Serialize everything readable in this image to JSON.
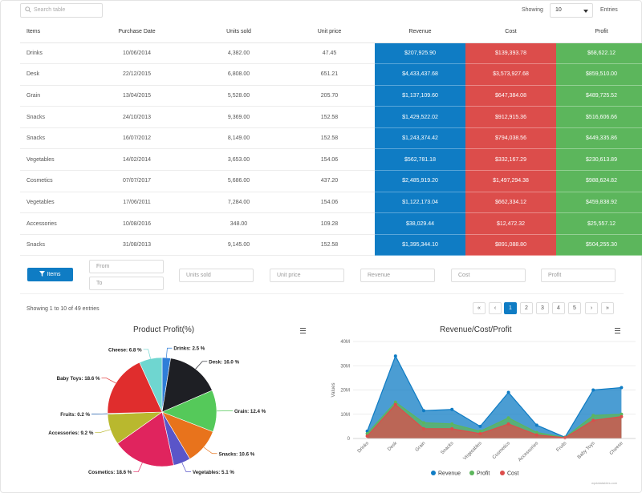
{
  "search": {
    "placeholder": "Search table"
  },
  "length": {
    "showing_label": "Showing",
    "value": "10",
    "entries_label": "Entries"
  },
  "table": {
    "columns": [
      "Items",
      "Purchase Date",
      "Units sold",
      "Unit price",
      "Revenue",
      "Cost",
      "Profit"
    ],
    "rows": [
      [
        "Drinks",
        "10/06/2014",
        "4,382.00",
        "47.45",
        "$207,925.90",
        "$139,393.78",
        "$68,622.12"
      ],
      [
        "Desk",
        "22/12/2015",
        "6,808.00",
        "651.21",
        "$4,433,437.68",
        "$3,573,927.68",
        "$859,510.00"
      ],
      [
        "Grain",
        "13/04/2015",
        "5,528.00",
        "205.70",
        "$1,137,109.60",
        "$647,384.08",
        "$489,725.52"
      ],
      [
        "Snacks",
        "24/10/2013",
        "9,369.00",
        "152.58",
        "$1,429,522.02",
        "$912,915.36",
        "$516,606.66"
      ],
      [
        "Snacks",
        "16/07/2012",
        "8,149.00",
        "152.58",
        "$1,243,374.42",
        "$794,038.56",
        "$449,335.86"
      ],
      [
        "Vegetables",
        "14/02/2014",
        "3,653.00",
        "154.06",
        "$562,781.18",
        "$332,167.29",
        "$230,613.89"
      ],
      [
        "Cosmetics",
        "07/07/2017",
        "5,686.00",
        "437.20",
        "$2,485,919.20",
        "$1,497,294.38",
        "$988,624.82"
      ],
      [
        "Vegetables",
        "17/06/2011",
        "7,284.00",
        "154.06",
        "$1,122,173.04",
        "$662,334.12",
        "$459,838.92"
      ],
      [
        "Accessories",
        "10/08/2016",
        "348.00",
        "109.28",
        "$38,029.44",
        "$12,472.32",
        "$25,557.12"
      ],
      [
        "Snacks",
        "31/08/2013",
        "9,145.00",
        "152.58",
        "$1,395,344.10",
        "$891,088.80",
        "$504,255.30"
      ]
    ]
  },
  "filters": {
    "button_label": "Items",
    "from_placeholder": "From",
    "to_placeholder": "To",
    "units_placeholder": "Units sold",
    "price_placeholder": "Unit price",
    "revenue_placeholder": "Revenue",
    "cost_placeholder": "Cost",
    "profit_placeholder": "Profit"
  },
  "pagination": {
    "info": "Showing 1 to 10 of 49 entries",
    "first": "«",
    "prev": "‹",
    "pages": [
      "1",
      "2",
      "3",
      "4",
      "5"
    ],
    "active_page": "1",
    "next": "›",
    "last": "»"
  },
  "colors": {
    "revenue": "#0f7cc4",
    "cost": "#dc4d4b",
    "profit": "#5cb65c",
    "accent": "#0f7cc4"
  },
  "icons": {
    "search": "search-icon",
    "filter": "filter-icon",
    "menu": "hamburger-menu-icon"
  },
  "credit": "wpdatatables.com",
  "chart_data": [
    {
      "type": "pie",
      "title": "Product Profit(%)",
      "slices": [
        {
          "label": "Drinks: 2.5 %",
          "value": 2.5,
          "color": "#2f7ed8"
        },
        {
          "label": "Desk: 16.0 %",
          "value": 16.0,
          "color": "#1e1f24"
        },
        {
          "label": "Grain: 12.4 %",
          "value": 12.4,
          "color": "#55c95a"
        },
        {
          "label": "Snacks: 10.6 %",
          "value": 10.6,
          "color": "#e8731c"
        },
        {
          "label": "Vegetables: 5.1 %",
          "value": 5.1,
          "color": "#5a55c8"
        },
        {
          "label": "Cosmetics: 18.6 %",
          "value": 18.6,
          "color": "#e0245e"
        },
        {
          "label": "Accessories: 9.2 %",
          "value": 9.2,
          "color": "#b9b82e"
        },
        {
          "label": "Fruits: 0.2 %",
          "value": 0.2,
          "color": "#1b5aa8"
        },
        {
          "label": "Baby Toys: 18.6 %",
          "value": 18.6,
          "color": "#e02d2d"
        },
        {
          "label": "Cheese: 6.8 %",
          "value": 6.8,
          "color": "#6fd6d0"
        }
      ]
    },
    {
      "type": "area",
      "title": "Revenue/Cost/Profit",
      "xlabel": "",
      "ylabel": "Values",
      "ylim": [
        0,
        40
      ],
      "yticks": [
        "0",
        "10M",
        "20M",
        "30M",
        "40M"
      ],
      "categories": [
        "Drinks",
        "Desk",
        "Grain",
        "Snacks",
        "Vegetables",
        "Cosmetics",
        "Accessories",
        "Fruits",
        "Baby Toys",
        "Cheese"
      ],
      "series": [
        {
          "name": "Revenue",
          "color": "#0f7cc4",
          "values": [
            3,
            34,
            11.5,
            12,
            5,
            19,
            5.5,
            0.5,
            20,
            21
          ]
        },
        {
          "name": "Profit",
          "color": "#5cb65c",
          "values": [
            2,
            15,
            6.5,
            6,
            3,
            8.5,
            2.5,
            0.4,
            9.5,
            10
          ]
        },
        {
          "name": "Cost",
          "color": "#dc4d4b",
          "values": [
            1,
            14,
            4,
            4,
            2,
            6,
            1.5,
            0.3,
            7.5,
            9
          ]
        }
      ]
    }
  ]
}
